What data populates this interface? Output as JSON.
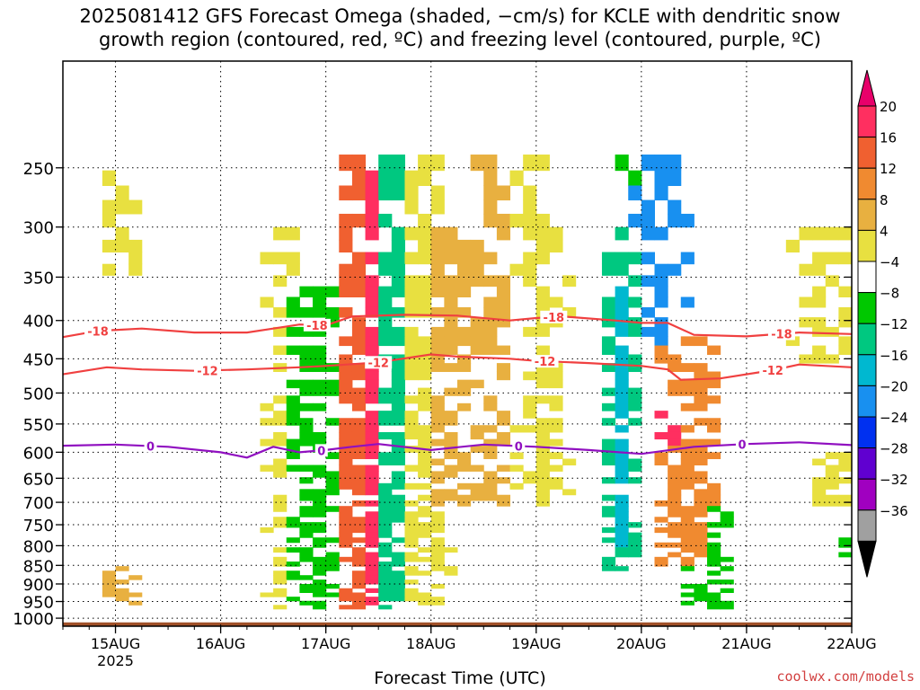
{
  "title_line1": "2025081412 GFS Forecast Omega (shaded, −cm/s) for KCLE with dendritic snow",
  "title_line2": "growth region (contoured, red, ºC) and freezing level (contoured, purple, ºC)",
  "xlabel": "Forecast Time (UTC)",
  "credit": "coolwx.com/models",
  "colors": {
    "contour_red": "#f04040",
    "contour_purple": "#9010c0",
    "ground": "#a05028"
  },
  "chart_data": {
    "type": "heatmap",
    "x_range": [
      "2025-08-14T12",
      "2025-08-22T00"
    ],
    "y_range_hPa": [
      1025,
      180
    ],
    "y_ticks": [
      250,
      300,
      350,
      400,
      450,
      500,
      550,
      600,
      650,
      700,
      750,
      800,
      850,
      900,
      950,
      1000
    ],
    "x_ticks": [
      {
        "time": "2025-08-15T00",
        "label": "15AUG",
        "sublabel": "2025"
      },
      {
        "time": "2025-08-16T00",
        "label": "16AUG",
        "sublabel": ""
      },
      {
        "time": "2025-08-17T00",
        "label": "17AUG",
        "sublabel": ""
      },
      {
        "time": "2025-08-18T00",
        "label": "18AUG",
        "sublabel": ""
      },
      {
        "time": "2025-08-19T00",
        "label": "19AUG",
        "sublabel": ""
      },
      {
        "time": "2025-08-20T00",
        "label": "20AUG",
        "sublabel": ""
      },
      {
        "time": "2025-08-21T00",
        "label": "21AUG",
        "sublabel": ""
      },
      {
        "time": "2025-08-22T00",
        "label": "22AUG",
        "sublabel": ""
      }
    ],
    "grid": true,
    "colorbar": {
      "labels": [
        "20",
        "16",
        "12",
        "8",
        "4",
        "−4",
        "−8",
        "−12",
        "−16",
        "−20",
        "−24",
        "−28",
        "−32",
        "−36"
      ],
      "colors": [
        "#ff2f60",
        "#f06030",
        "#f08a30",
        "#e8b040",
        "#e8e040",
        "#ffffff",
        "#00c800",
        "#00c880",
        "#00b8d0",
        "#1890f0",
        "#0030f0",
        "#6000d0",
        "#a000c0",
        "#a0a0a0"
      ],
      "top_cap": "#e8006a",
      "bottom_cap": "#000000"
    },
    "contours": [
      {
        "level": "-18",
        "color": "#f04040",
        "labels": [
          {
            "time": "2025-08-14T20"
          },
          {
            "time": "2025-08-16T22"
          },
          {
            "time": "2025-08-19T04"
          },
          {
            "time": "2025-08-21T08"
          }
        ],
        "points": [
          [
            "2025-08-14T12",
            421
          ],
          [
            "2025-08-14T20",
            413
          ],
          [
            "2025-08-15T06",
            410
          ],
          [
            "2025-08-15T18",
            415
          ],
          [
            "2025-08-16T06",
            415
          ],
          [
            "2025-08-16T12",
            410
          ],
          [
            "2025-08-16T18",
            405
          ],
          [
            "2025-08-17T00",
            406
          ],
          [
            "2025-08-17T06",
            395
          ],
          [
            "2025-08-17T18",
            393
          ],
          [
            "2025-08-18T06",
            394
          ],
          [
            "2025-08-18T18",
            400
          ],
          [
            "2025-08-19T00",
            397
          ],
          [
            "2025-08-19T06",
            395
          ],
          [
            "2025-08-19T18",
            400
          ],
          [
            "2025-08-20T00",
            403
          ],
          [
            "2025-08-20T06",
            403
          ],
          [
            "2025-08-20T12",
            418
          ],
          [
            "2025-08-21T00",
            420
          ],
          [
            "2025-08-21T12",
            415
          ],
          [
            "2025-08-22T00",
            417
          ]
        ]
      },
      {
        "level": "-12",
        "color": "#f04040",
        "labels": [
          {
            "time": "2025-08-15T21"
          },
          {
            "time": "2025-08-17T12"
          },
          {
            "time": "2025-08-19T02"
          },
          {
            "time": "2025-08-21T06"
          }
        ],
        "points": [
          [
            "2025-08-14T12",
            472
          ],
          [
            "2025-08-14T22",
            462
          ],
          [
            "2025-08-15T06",
            465
          ],
          [
            "2025-08-15T18",
            467
          ],
          [
            "2025-08-16T06",
            465
          ],
          [
            "2025-08-16T18",
            462
          ],
          [
            "2025-08-17T00",
            460
          ],
          [
            "2025-08-17T12",
            455
          ],
          [
            "2025-08-18T00",
            444
          ],
          [
            "2025-08-18T06",
            447
          ],
          [
            "2025-08-18T18",
            450
          ],
          [
            "2025-08-19T00",
            453
          ],
          [
            "2025-08-19T12",
            456
          ],
          [
            "2025-08-20T00",
            460
          ],
          [
            "2025-08-20T06",
            465
          ],
          [
            "2025-08-20T09",
            480
          ],
          [
            "2025-08-20T18",
            478
          ],
          [
            "2025-08-21T06",
            466
          ],
          [
            "2025-08-21T12",
            458
          ],
          [
            "2025-08-22T00",
            462
          ]
        ]
      },
      {
        "level": "0",
        "color": "#9010c0",
        "labels": [
          {
            "time": "2025-08-15T08"
          },
          {
            "time": "2025-08-16T23"
          },
          {
            "time": "2025-08-18T20"
          },
          {
            "time": "2025-08-20T23"
          }
        ],
        "points": [
          [
            "2025-08-14T12",
            588
          ],
          [
            "2025-08-15T00",
            586
          ],
          [
            "2025-08-15T12",
            590
          ],
          [
            "2025-08-16T00",
            600
          ],
          [
            "2025-08-16T06",
            610
          ],
          [
            "2025-08-16T12",
            590
          ],
          [
            "2025-08-16T18",
            600
          ],
          [
            "2025-08-17T00",
            596
          ],
          [
            "2025-08-17T06",
            590
          ],
          [
            "2025-08-17T12",
            585
          ],
          [
            "2025-08-18T00",
            596
          ],
          [
            "2025-08-18T12",
            586
          ],
          [
            "2025-08-19T00",
            590
          ],
          [
            "2025-08-19T12",
            596
          ],
          [
            "2025-08-20T00",
            603
          ],
          [
            "2025-08-20T12",
            590
          ],
          [
            "2025-08-21T00",
            585
          ],
          [
            "2025-08-21T12",
            582
          ],
          [
            "2025-08-22T00",
            587
          ]
        ]
      }
    ]
  }
}
